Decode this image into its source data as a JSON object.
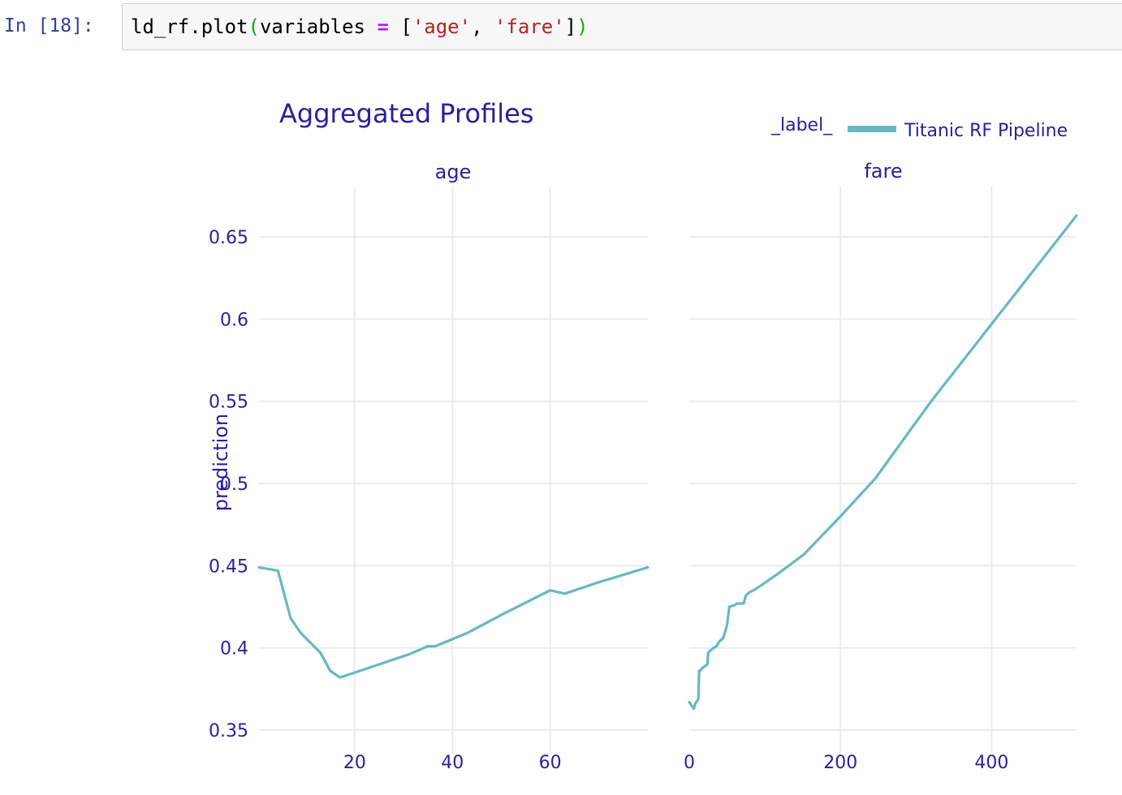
{
  "cell": {
    "prompt": "In [18]:",
    "code_tokens": [
      {
        "text": "ld_rf.plot",
        "kind": "plain"
      },
      {
        "text": "(",
        "kind": "paren"
      },
      {
        "text": "variables ",
        "kind": "plain"
      },
      {
        "text": "=",
        "kind": "op"
      },
      {
        "text": " [",
        "kind": "plain"
      },
      {
        "text": "'age'",
        "kind": "str"
      },
      {
        "text": ", ",
        "kind": "plain"
      },
      {
        "text": "'fare'",
        "kind": "str"
      },
      {
        "text": "]",
        "kind": "plain"
      },
      {
        "text": ")",
        "kind": "paren"
      }
    ]
  },
  "colors": {
    "text": "#2a1e9c",
    "line": "#66b8c2",
    "grid": "#ebebeb"
  },
  "chart_data": {
    "type": "line",
    "title": "Aggregated Profiles",
    "ylabel": "prediction",
    "ylim": [
      0.35,
      0.677
    ],
    "yticks": [
      0.35,
      0.4,
      0.45,
      0.5,
      0.55,
      0.6,
      0.65
    ],
    "ytick_labels": [
      "0.35",
      "0.4",
      "0.45",
      "0.5",
      "0.55",
      "0.6",
      "0.65"
    ],
    "grid": true,
    "legend": {
      "title": "_label_",
      "placement": "top-right",
      "entries": [
        {
          "name": "Titanic RF Pipeline",
          "color": "#66b8c2"
        }
      ]
    },
    "panels": [
      {
        "title": "age",
        "xlim": [
          0.42,
          80
        ],
        "xticks": [
          20,
          40,
          60
        ],
        "xtick_labels": [
          "20",
          "40",
          "60"
        ],
        "series": [
          {
            "name": "Titanic RF Pipeline",
            "x": [
              0.42,
              4.3,
              6.9,
              9,
              13,
              15,
              17,
              20,
              24,
              28,
              31,
              35,
              36.5,
              43,
              50,
              60,
              63,
              70,
              80
            ],
            "y": [
              0.449,
              0.447,
              0.418,
              0.409,
              0.397,
              0.386,
              0.382,
              0.385,
              0.389,
              0.393,
              0.396,
              0.401,
              0.401,
              0.409,
              0.42,
              0.435,
              0.433,
              0.44,
              0.449
            ]
          }
        ]
      },
      {
        "title": "fare",
        "xlim": [
          0,
          512.33
        ],
        "xticks": [
          0,
          200,
          400
        ],
        "xtick_labels": [
          "0",
          "200",
          "400"
        ],
        "series": [
          {
            "name": "Titanic RF Pipeline",
            "x": [
              0,
              3,
              6,
              8,
              12,
              13,
              14,
              18,
              24,
              25,
              27,
              32,
              36,
              40,
              45,
              50,
              53,
              60,
              63,
              72,
              75,
              80,
              85,
              95,
              120,
              152,
              200,
              246,
              320,
              400,
              512.33
            ],
            "y": [
              0.367,
              0.365,
              0.363,
              0.366,
              0.369,
              0.386,
              0.386,
              0.388,
              0.39,
              0.397,
              0.398,
              0.4,
              0.401,
              0.404,
              0.406,
              0.414,
              0.425,
              0.426,
              0.427,
              0.427,
              0.432,
              0.434,
              0.435,
              0.438,
              0.446,
              0.457,
              0.48,
              0.503,
              0.55,
              0.597,
              0.663
            ]
          }
        ]
      }
    ]
  }
}
